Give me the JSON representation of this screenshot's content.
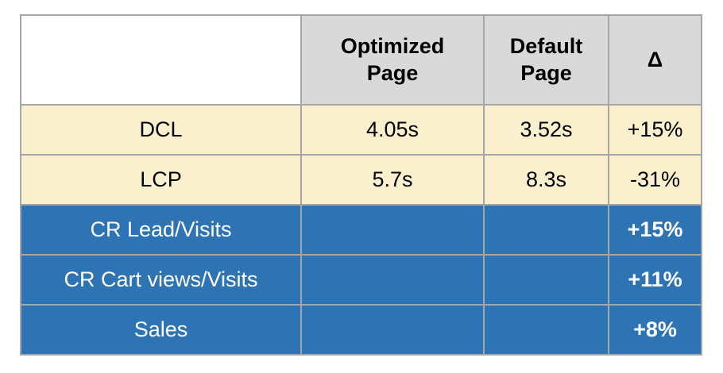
{
  "chart_data": {
    "type": "table",
    "columns": [
      "",
      "Optimized Page",
      "Default Page",
      "Δ"
    ],
    "rows": [
      [
        "DCL",
        "4.05s",
        "3.52s",
        "+15%"
      ],
      [
        "LCP",
        "5.7s",
        "8.3s",
        "-31%"
      ],
      [
        "CR Lead/Visits",
        "",
        "",
        "+15%"
      ],
      [
        "CR Cart views/Visits",
        "",
        "",
        "+11%"
      ],
      [
        "Sales",
        "",
        "",
        "+8%"
      ]
    ],
    "title": "",
    "layout_hints": {
      "header_style": "bold on gray",
      "highlight_rows_1_2": "cream background",
      "accent_rows_3_5": "blue background with white text, bold delta values"
    }
  },
  "table": {
    "header": {
      "col0": "",
      "col1": "Optimized\nPage",
      "col2": "Default\nPage",
      "col3": "Δ"
    },
    "rows": [
      {
        "label": "DCL",
        "optimized": "4.05s",
        "default": "3.52s",
        "delta": "+15%"
      },
      {
        "label": "LCP",
        "optimized": "5.7s",
        "default": "8.3s",
        "delta": "-31%"
      },
      {
        "label": "CR Lead/Visits",
        "optimized": "",
        "default": "",
        "delta": "+15%"
      },
      {
        "label": "CR Cart views/Visits",
        "optimized": "",
        "default": "",
        "delta": "+11%"
      },
      {
        "label": "Sales",
        "optimized": "",
        "default": "",
        "delta": "+8%"
      }
    ]
  },
  "colors": {
    "header_bg": "#d9d9d9",
    "row_highlight_bg": "#fbf0cd",
    "row_accent_bg": "#2e74b5",
    "border": "#a6a6a6",
    "text": "#000000",
    "accent_text": "#ffffff",
    "page_bg": "#ffffff"
  }
}
